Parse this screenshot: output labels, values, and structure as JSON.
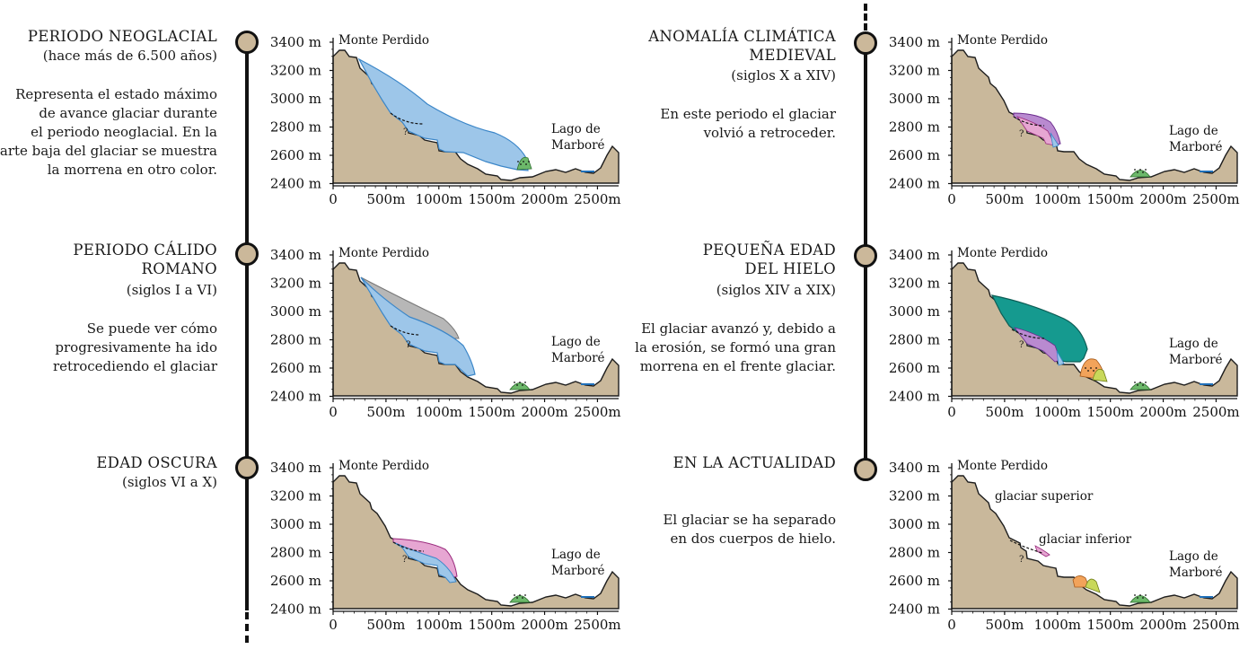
{
  "colors": {
    "terrain": "#c9b89b",
    "ice": "#9dc6e9",
    "ice_edge": "#3b86c8",
    "grey_ice": "#b7b7b7",
    "pink_ice": "#e6a6d2",
    "purple_ice": "#b98ad0",
    "teal_ice": "#159a8f",
    "moraine_green": "#6cb86a",
    "moraine_orange": "#f2a35a",
    "moraine_yellow": "#c8d85a",
    "lake": "#1f6fb8",
    "node_fill": "#cbb89a"
  },
  "axis": {
    "y_ticks": [
      "3400 m",
      "3200 m",
      "3000 m",
      "2800 m",
      "2600 m",
      "2400 m"
    ],
    "x_ticks": [
      "0",
      "500m",
      "1000m",
      "1500m",
      "2000m",
      "2500m"
    ]
  },
  "labels": {
    "peak": "Monte Perdido",
    "lake_line1": "Lago de",
    "lake_line2": "Marboré",
    "question": "?"
  },
  "periods": [
    {
      "title": [
        "PERIODO NEOGLACIAL"
      ],
      "subtitle": "(hace más de 6.500 años)",
      "description": [
        "Representa el estado máximo",
        "de avance glaciar durante",
        "el periodo neoglacial. En la",
        "parte baja del glaciar se muestra",
        "la morrena en otro color."
      ]
    },
    {
      "title": [
        "PERIODO CÁLIDO",
        "ROMANO"
      ],
      "subtitle": "(siglos I a VI)",
      "description": [
        "Se puede ver cómo",
        "progresivamente ha ido",
        "retrocediendo el glaciar"
      ]
    },
    {
      "title": [
        "EDAD OSCURA"
      ],
      "subtitle": "(siglos VI a X)",
      "description": []
    },
    {
      "title": [
        "ANOMALÍA CLIMÁTICA",
        "MEDIEVAL"
      ],
      "subtitle": "(siglos X a XIV)",
      "description": [
        "En este periodo el glaciar",
        "volvió a retroceder."
      ]
    },
    {
      "title": [
        "PEQUEÑA EDAD",
        "DEL HIELO"
      ],
      "subtitle": "(siglos XIV a XIX)",
      "description": [
        "El glaciar avanzó y, debido a",
        "la erosión, se formó una gran",
        "morrena en el frente glaciar."
      ]
    },
    {
      "title": [
        "EN LA ACTUALIDAD"
      ],
      "subtitle": "",
      "description": [
        "El glaciar se ha separado",
        "en dos cuerpos de hielo."
      ],
      "extra_labels": [
        "glaciar superior",
        "glaciar inferior"
      ]
    }
  ]
}
